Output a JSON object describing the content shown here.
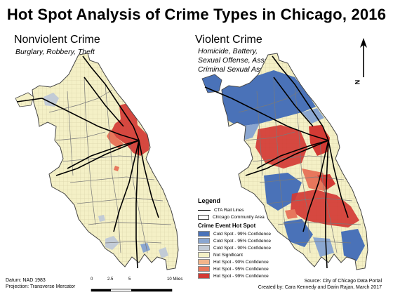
{
  "title": "Hot Spot Analysis of Crime Types in Chicago, 2016",
  "panels": {
    "left": {
      "title": "Nonviolent Crime",
      "subtitle": [
        "Burglary, Robbery, Theft"
      ]
    },
    "right": {
      "title": "Violent Crime",
      "subtitle": [
        "Homicide, Battery,",
        "Sexual Offense, Assault,",
        "Criminal Sexual Assault"
      ]
    }
  },
  "legend": {
    "title": "Legend",
    "rail": "CTA Rail Lines",
    "community": "Chicago Community Area",
    "hotspot_title": "Crime Event Hot Spot",
    "classes": [
      {
        "label": "Cold Spot - 99% Confidence",
        "color": "#4a72b8"
      },
      {
        "label": "Cold Spot - 95% Confidence",
        "color": "#8aa6d0"
      },
      {
        "label": "Cold Spot - 90% Confidence",
        "color": "#c2cbd6"
      },
      {
        "label": "Not Significant",
        "color": "#f4f0c6"
      },
      {
        "label": "Hot Spot - 90% Confidence",
        "color": "#f2b48a"
      },
      {
        "label": "Hot Spot - 95% Confidence",
        "color": "#e7775c"
      },
      {
        "label": "Hot Spot - 99% Confidence",
        "color": "#d33a34"
      }
    ]
  },
  "datum": "Datum: NAD 1983",
  "projection": "Projection: Transverse Mercator",
  "scale_labels": [
    "0",
    "2.5",
    "5",
    "10 Miles"
  ],
  "source": "Source: City of Chicago Data Portal",
  "credit": "Created by: Cara Kennedy and Darin Rajan, March 2017",
  "north_label": "N",
  "colors": {
    "rail": "#000000",
    "boundary": "#7a7a7a",
    "grid": "#cfcaa0"
  }
}
